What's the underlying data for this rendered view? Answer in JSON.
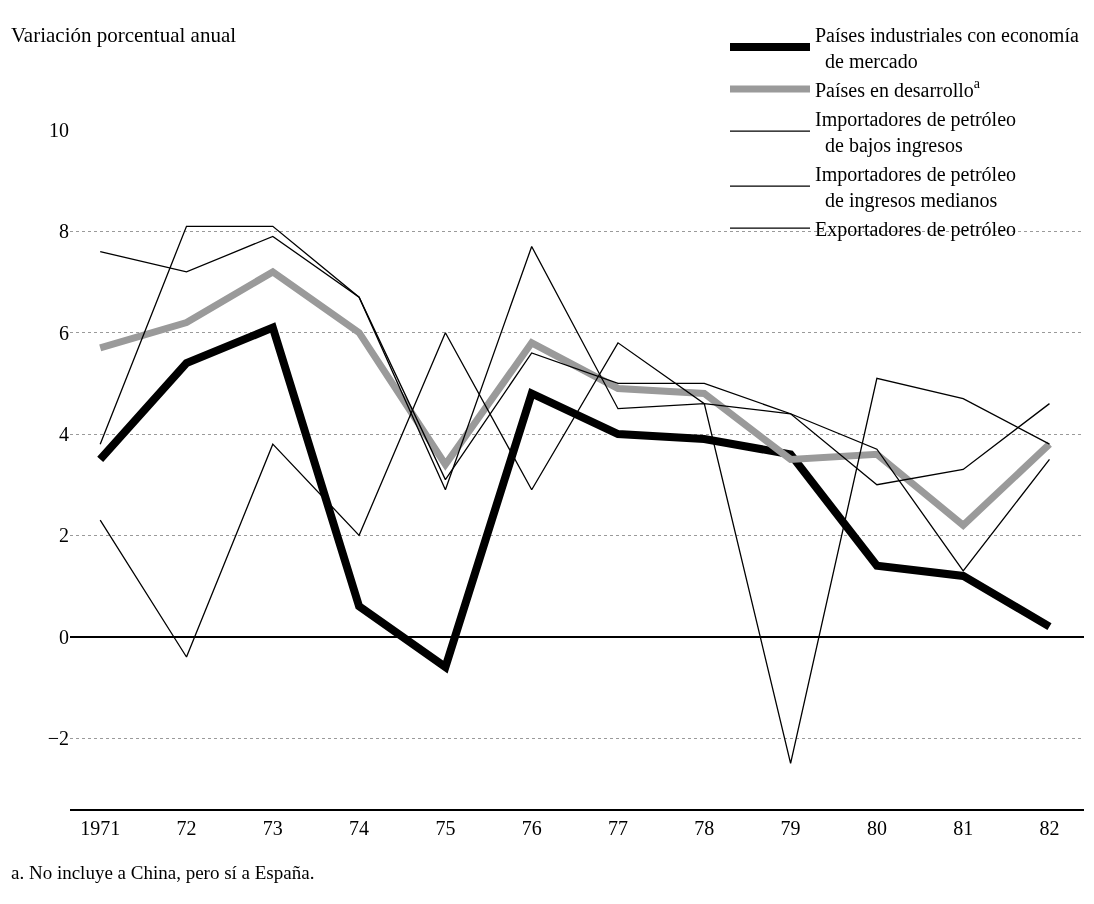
{
  "chart_data": {
    "type": "line",
    "ylabel": "Variación porcentual anual",
    "categories": [
      "1971",
      "72",
      "73",
      "74",
      "75",
      "76",
      "77",
      "78",
      "79",
      "80",
      "81",
      "82"
    ],
    "series": [
      {
        "name": "Países industriales con economía\n  de mercado",
        "color": "#000000",
        "values": [
          3.5,
          5.4,
          6.1,
          0.6,
          -0.6,
          4.8,
          4.0,
          3.9,
          3.6,
          1.4,
          1.2,
          0.2
        ]
      },
      {
        "name": "Países en desarrollo$^{a}$",
        "color": "#9a9a9a",
        "values": [
          5.7,
          6.2,
          7.2,
          6.0,
          3.4,
          5.8,
          4.9,
          4.8,
          3.5,
          3.6,
          2.2,
          3.8
        ]
      },
      {
        "name": "Importadores de petróleo\n  de bajos ingresos",
        "color": "#000000",
        "values": [
          2.3,
          -0.4,
          3.8,
          2.0,
          6.0,
          2.9,
          5.8,
          4.6,
          -2.5,
          5.1,
          4.7,
          3.8
        ]
      },
      {
        "name": "Importadores de petróleo\n  de ingresos medianos",
        "color": "#000000",
        "values": [
          7.6,
          7.2,
          7.9,
          6.7,
          3.1,
          5.6,
          5.0,
          5.0,
          4.4,
          3.7,
          1.3,
          3.5
        ]
      },
      {
        "name": "Exportadores de petróleo",
        "color": "#000000",
        "values": [
          3.8,
          8.1,
          8.1,
          6.7,
          2.9,
          7.7,
          4.5,
          4.6,
          4.4,
          3.0,
          3.3,
          4.6
        ]
      }
    ],
    "ylim": [
      -3.4,
      10
    ],
    "yticks": [
      {
        "value": -2,
        "label": "−2"
      },
      0,
      2,
      4,
      6,
      8,
      10
    ],
    "grid": "y",
    "legend": "top right",
    "marker": "none",
    "line_style": "solid",
    "annotations": [
      "a. No incluye a China, pero sí a España."
    ]
  }
}
